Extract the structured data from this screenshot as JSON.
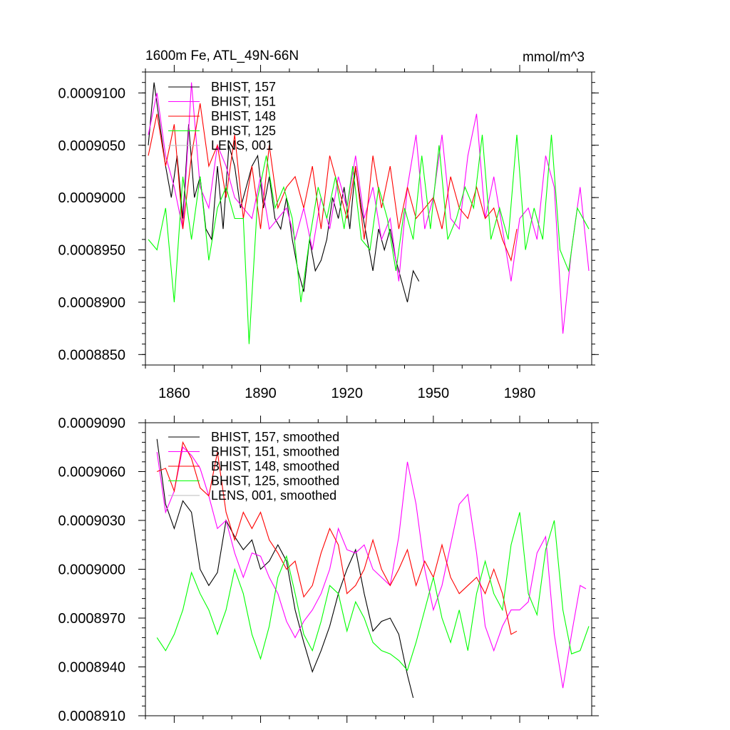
{
  "chart_data": [
    {
      "type": "line",
      "title": "1600m Fe, ATL_49N-66N",
      "units": "mmol/m^3",
      "xlim": [
        1850,
        2005
      ],
      "ylim": [
        0.000884,
        0.000912
      ],
      "xticks": [
        1860,
        1890,
        1920,
        1950,
        1980
      ],
      "yticks": [
        0.000885,
        0.00089,
        0.000895,
        0.0009,
        0.000905,
        0.00091
      ],
      "ytick_labels": [
        "0.0008850",
        "0.0008900",
        "0.0008950",
        "0.0009000",
        "0.0009050",
        "0.0009100"
      ],
      "legend_position": "top-left",
      "series": [
        {
          "name": "BHIST, 157",
          "color": "#000000",
          "x": [
            1851,
            1853,
            1855,
            1857,
            1859,
            1861,
            1863,
            1865,
            1867,
            1869,
            1871,
            1873,
            1875,
            1877,
            1879,
            1881,
            1883,
            1885,
            1887,
            1889,
            1891,
            1893,
            1895,
            1897,
            1899,
            1901,
            1903,
            1905,
            1907,
            1909,
            1911,
            1913,
            1915,
            1917,
            1919,
            1921,
            1923,
            1925,
            1927,
            1929,
            1931,
            1933,
            1935,
            1937,
            1939,
            1941,
            1943,
            1945
          ],
          "y": [
            0.000905,
            0.000911,
            0.000907,
            0.000903,
            0.0009,
            0.000904,
            0.000898,
            0.000907,
            0.0009,
            0.000902,
            0.000897,
            0.000896,
            0.000903,
            0.000897,
            0.000905,
            0.000903,
            0.000899,
            0.000901,
            0.000903,
            0.000904,
            0.000899,
            0.000902,
            0.000898,
            0.000897,
            0.0009,
            0.000896,
            0.000893,
            0.000891,
            0.000896,
            0.000893,
            0.000894,
            0.000896,
            0.0009,
            0.000898,
            0.000901,
            0.000897,
            0.000903,
            0.000899,
            0.000896,
            0.000893,
            0.000897,
            0.000895,
            0.000897,
            0.000894,
            0.000892,
            0.00089,
            0.000893,
            0.000892
          ]
        },
        {
          "name": "BHIST, 151",
          "color": "#ff00ff",
          "x": [
            1851,
            1854,
            1857,
            1860,
            1863,
            1866,
            1869,
            1872,
            1875,
            1878,
            1881,
            1884,
            1887,
            1890,
            1893,
            1896,
            1899,
            1902,
            1905,
            1908,
            1911,
            1914,
            1917,
            1920,
            1923,
            1926,
            1929,
            1932,
            1935,
            1938,
            1941,
            1944,
            1947,
            1950,
            1953,
            1956,
            1959,
            1962,
            1965,
            1968,
            1971,
            1974,
            1977,
            1980,
            1983,
            1986,
            1989,
            1992,
            1995,
            1998,
            2001,
            2004
          ],
          "y": [
            0.000906,
            0.00091,
            0.000904,
            0.000901,
            0.000897,
            0.000911,
            0.000901,
            0.000899,
            0.000905,
            0.000903,
            0.0009,
            0.000899,
            0.000898,
            0.000902,
            0.000897,
            0.000898,
            0.000899,
            0.000896,
            0.000899,
            0.000895,
            0.0009,
            0.000897,
            0.000902,
            0.000899,
            0.000904,
            0.000898,
            0.000901,
            0.000896,
            0.000898,
            0.000892,
            0.000901,
            0.000906,
            0.000897,
            0.0009,
            0.000906,
            0.000898,
            0.000897,
            0.000904,
            0.000908,
            0.000898,
            0.000902,
            0.000897,
            0.000892,
            0.000898,
            0.000899,
            0.000896,
            0.000904,
            0.000901,
            0.000887,
            0.000895,
            0.000901,
            0.000893
          ]
        },
        {
          "name": "BHIST, 148",
          "color": "#ff0000",
          "x": [
            1851,
            1854,
            1857,
            1860,
            1863,
            1866,
            1869,
            1872,
            1875,
            1878,
            1881,
            1884,
            1887,
            1890,
            1893,
            1896,
            1899,
            1902,
            1905,
            1908,
            1911,
            1914,
            1917,
            1920,
            1923,
            1926,
            1929,
            1932,
            1935,
            1938,
            1941,
            1944,
            1947,
            1950,
            1953,
            1956,
            1959,
            1962,
            1965,
            1968,
            1971,
            1974,
            1977,
            1979
          ],
          "y": [
            0.000904,
            0.000908,
            0.000903,
            0.000907,
            0.000897,
            0.000904,
            0.000909,
            0.000903,
            0.000905,
            0.0009,
            0.000906,
            0.000898,
            0.000903,
            0.000897,
            0.000905,
            0.000899,
            0.000901,
            0.000902,
            0.000899,
            0.000903,
            0.000897,
            0.000904,
            0.000901,
            0.000898,
            0.000903,
            0.000896,
            0.000904,
            0.000899,
            0.000903,
            0.000897,
            0.000901,
            0.000898,
            0.000899,
            0.0009,
            0.000897,
            0.000902,
            0.000899,
            0.000898,
            0.000901,
            0.000898,
            0.000899,
            0.000896,
            0.000894,
            0.000897
          ]
        },
        {
          "name": "BHIST, 125",
          "color": "#00ff00",
          "x": [
            1851,
            1854,
            1857,
            1860,
            1863,
            1866,
            1869,
            1872,
            1875,
            1878,
            1881,
            1884,
            1886,
            1889,
            1892,
            1895,
            1898,
            1901,
            1904,
            1907,
            1910,
            1913,
            1916,
            1919,
            1922,
            1925,
            1928,
            1931,
            1934,
            1937,
            1940,
            1943,
            1946,
            1949,
            1952,
            1955,
            1958,
            1961,
            1964,
            1967,
            1970,
            1973,
            1976,
            1979,
            1982,
            1985,
            1988,
            1991,
            1994,
            1997,
            2000,
            2004
          ],
          "y": [
            0.000896,
            0.000895,
            0.000899,
            0.00089,
            0.000902,
            0.000896,
            0.000902,
            0.000894,
            0.000899,
            0.000901,
            0.000898,
            0.000898,
            0.000886,
            0.0009,
            0.000904,
            0.000899,
            0.000901,
            0.000898,
            0.00089,
            0.000896,
            0.000901,
            0.000898,
            0.000902,
            0.000897,
            0.000903,
            0.000896,
            0.000895,
            0.000901,
            0.000898,
            0.000893,
            0.000899,
            0.000896,
            0.000904,
            0.000897,
            0.000905,
            0.000896,
            0.000898,
            0.000901,
            0.000899,
            0.000906,
            0.000896,
            0.000899,
            0.000896,
            0.000906,
            0.000895,
            0.000899,
            0.000896,
            0.000906,
            0.000895,
            0.000893,
            0.000899,
            0.000897
          ]
        }
      ]
    },
    {
      "type": "line",
      "xlim": [
        1850,
        2005
      ],
      "ylim": [
        0.000891,
        0.000909
      ],
      "yticks": [
        0.000891,
        0.000894,
        0.000897,
        0.0009,
        0.000903,
        0.000906,
        0.000909
      ],
      "ytick_labels": [
        "0.0008910",
        "0.0008940",
        "0.0008970",
        "0.0009000",
        "0.0009030",
        "0.0009060",
        "0.0009090"
      ],
      "legend_position": "top-left",
      "series": [
        {
          "name": "BHIST, 157, smoothed",
          "color": "#000000",
          "x": [
            1854,
            1857,
            1860,
            1863,
            1866,
            1869,
            1872,
            1875,
            1878,
            1881,
            1884,
            1887,
            1890,
            1893,
            1896,
            1899,
            1902,
            1905,
            1908,
            1911,
            1914,
            1917,
            1920,
            1923,
            1926,
            1929,
            1932,
            1935,
            1938,
            1941,
            1943
          ],
          "y": [
            0.000908,
            0.000904,
            0.0009025,
            0.0009042,
            0.0009035,
            0.0009,
            0.000899,
            0.0008998,
            0.000903,
            0.000902,
            0.0009012,
            0.0009018,
            0.0009,
            0.0009005,
            0.0009015,
            0.0009005,
            0.0008975,
            0.0008955,
            0.0008937,
            0.000895,
            0.0008965,
            0.0008985,
            0.0009,
            0.0009012,
            0.0008985,
            0.0008962,
            0.0008968,
            0.000897,
            0.000896,
            0.0008935,
            0.0008921
          ]
        },
        {
          "name": "BHIST, 151, smoothed",
          "color": "#ff00ff",
          "x": [
            1854,
            1857,
            1860,
            1863,
            1866,
            1869,
            1872,
            1875,
            1878,
            1881,
            1884,
            1887,
            1890,
            1893,
            1896,
            1899,
            1902,
            1905,
            1908,
            1911,
            1914,
            1917,
            1920,
            1923,
            1926,
            1929,
            1932,
            1935,
            1938,
            1941,
            1944,
            1947,
            1950,
            1953,
            1956,
            1959,
            1962,
            1965,
            1968,
            1971,
            1974,
            1977,
            1980,
            1983,
            1986,
            1989,
            1992,
            1995,
            1998,
            2001,
            2003
          ],
          "y": [
            0.0009072,
            0.0009035,
            0.0009048,
            0.0009075,
            0.000907,
            0.0009062,
            0.0009045,
            0.0009025,
            0.000903,
            0.000901,
            0.0008995,
            0.000901,
            0.0009008,
            0.0008995,
            0.0008985,
            0.0008968,
            0.0008958,
            0.0008968,
            0.0008975,
            0.0008985,
            0.0009,
            0.0009025,
            0.0009012,
            0.000901,
            0.0009015,
            0.0009,
            0.0008995,
            0.000899,
            0.000902,
            0.0009066,
            0.000904,
            0.0009,
            0.0008975,
            0.000899,
            0.0009015,
            0.000904,
            0.0009046,
            0.000901,
            0.0008965,
            0.000895,
            0.0008965,
            0.0008975,
            0.0008975,
            0.000898,
            0.000901,
            0.000902,
            0.000896,
            0.0008927,
            0.000896,
            0.000899,
            0.0008988
          ]
        },
        {
          "name": "BHIST, 148, smoothed",
          "color": "#ff0000",
          "x": [
            1854,
            1857,
            1860,
            1863,
            1866,
            1869,
            1872,
            1875,
            1878,
            1881,
            1884,
            1887,
            1890,
            1893,
            1896,
            1899,
            1902,
            1905,
            1908,
            1911,
            1914,
            1917,
            1920,
            1923,
            1926,
            1929,
            1932,
            1935,
            1938,
            1941,
            1944,
            1947,
            1950,
            1953,
            1956,
            1959,
            1962,
            1965,
            1968,
            1971,
            1974,
            1977,
            1979
          ],
          "y": [
            0.000906,
            0.0009062,
            0.0009048,
            0.0009078,
            0.0009068,
            0.000905,
            0.0009045,
            0.0009072,
            0.0009035,
            0.0009018,
            0.0009035,
            0.0009025,
            0.0009035,
            0.0009018,
            0.000901,
            0.0009,
            0.0009005,
            0.0008983,
            0.000899,
            0.000901,
            0.0009025,
            0.0009015,
            0.0008985,
            0.000899,
            0.0009,
            0.0009018,
            0.0009,
            0.000899,
            0.0009,
            0.0009012,
            0.000899,
            0.0009005,
            0.0008995,
            0.0009015,
            0.0008995,
            0.0008985,
            0.000899,
            0.0008995,
            0.0008985,
            0.0009,
            0.0008985,
            0.000896,
            0.0008962
          ]
        },
        {
          "name": "BHIST, 125, smoothed",
          "color": "#00ff00",
          "x": [
            1854,
            1857,
            1860,
            1863,
            1866,
            1869,
            1872,
            1875,
            1878,
            1881,
            1884,
            1887,
            1890,
            1893,
            1896,
            1899,
            1902,
            1905,
            1908,
            1911,
            1914,
            1917,
            1920,
            1923,
            1926,
            1929,
            1932,
            1935,
            1938,
            1941,
            1944,
            1947,
            1950,
            1953,
            1956,
            1959,
            1962,
            1965,
            1968,
            1971,
            1974,
            1977,
            1980,
            1983,
            1986,
            1989,
            1992,
            1995,
            1998,
            2001,
            2004
          ],
          "y": [
            0.0008958,
            0.000895,
            0.000896,
            0.0008975,
            0.0008998,
            0.0008985,
            0.0008975,
            0.000896,
            0.0008975,
            0.0009,
            0.0008985,
            0.000896,
            0.0008945,
            0.0008965,
            0.0008995,
            0.0009008,
            0.0008985,
            0.000896,
            0.000895,
            0.0008968,
            0.000899,
            0.0008985,
            0.0008962,
            0.000898,
            0.000897,
            0.0008955,
            0.000895,
            0.0008948,
            0.0008944,
            0.0008938,
            0.0008955,
            0.0008975,
            0.0008995,
            0.000897,
            0.0008955,
            0.0008975,
            0.000895,
            0.0008985,
            0.0009005,
            0.0008985,
            0.0008975,
            0.0009015,
            0.0009035,
            0.0008985,
            0.0008972,
            0.0009012,
            0.000903,
            0.0008975,
            0.0008948,
            0.000895,
            0.0008965
          ]
        }
      ]
    }
  ],
  "legend_extra": [
    {
      "name": "LENS, 001",
      "color": "#bbbbbb"
    },
    {
      "name": "LENS, 001, smoothed",
      "color": "#bbbbbb"
    }
  ]
}
